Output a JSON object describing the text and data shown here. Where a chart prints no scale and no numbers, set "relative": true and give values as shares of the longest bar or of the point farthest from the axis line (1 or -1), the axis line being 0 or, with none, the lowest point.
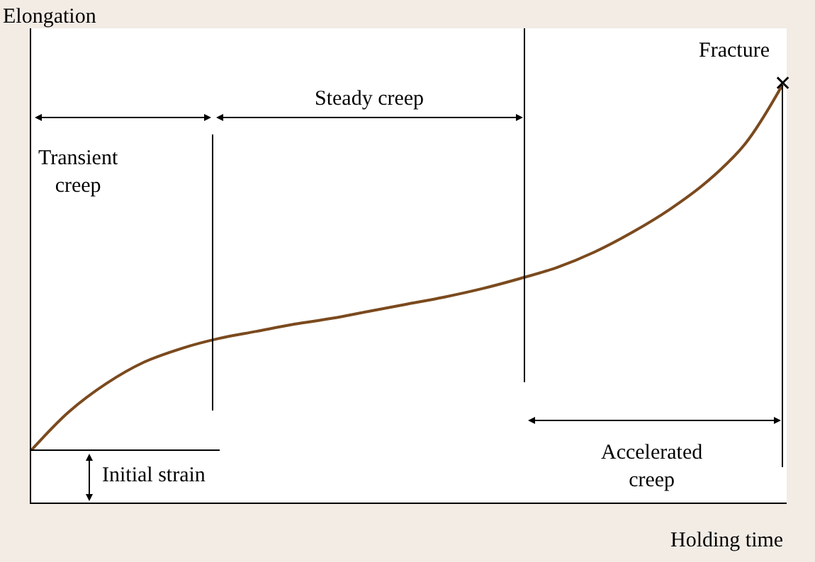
{
  "chart_data": {
    "type": "line",
    "relative": true,
    "xlabel": "Holding time",
    "ylabel": "Elongation",
    "categories": [
      null,
      null,
      null,
      null,
      null,
      null,
      null,
      null,
      null,
      null,
      null,
      null,
      null,
      null,
      null,
      null,
      null,
      null,
      null,
      null,
      null
    ],
    "series": [
      {
        "color": "#7b4a1e",
        "values": [
          0.125,
          0.217,
          0.285,
          0.336,
          0.369,
          0.393,
          0.41,
          0.427,
          0.441,
          0.458,
          0.475,
          0.492,
          0.512,
          0.536,
          0.563,
          0.6,
          0.647,
          0.702,
          0.769,
          0.858,
          1
        ]
      }
    ],
    "grid": false,
    "legend": false,
    "annotations": [
      "Fracture",
      "Transient\ncreep",
      "Steady creep",
      "Accelerated\ncreep",
      "Initial strain",
      "✕"
    ]
  }
}
